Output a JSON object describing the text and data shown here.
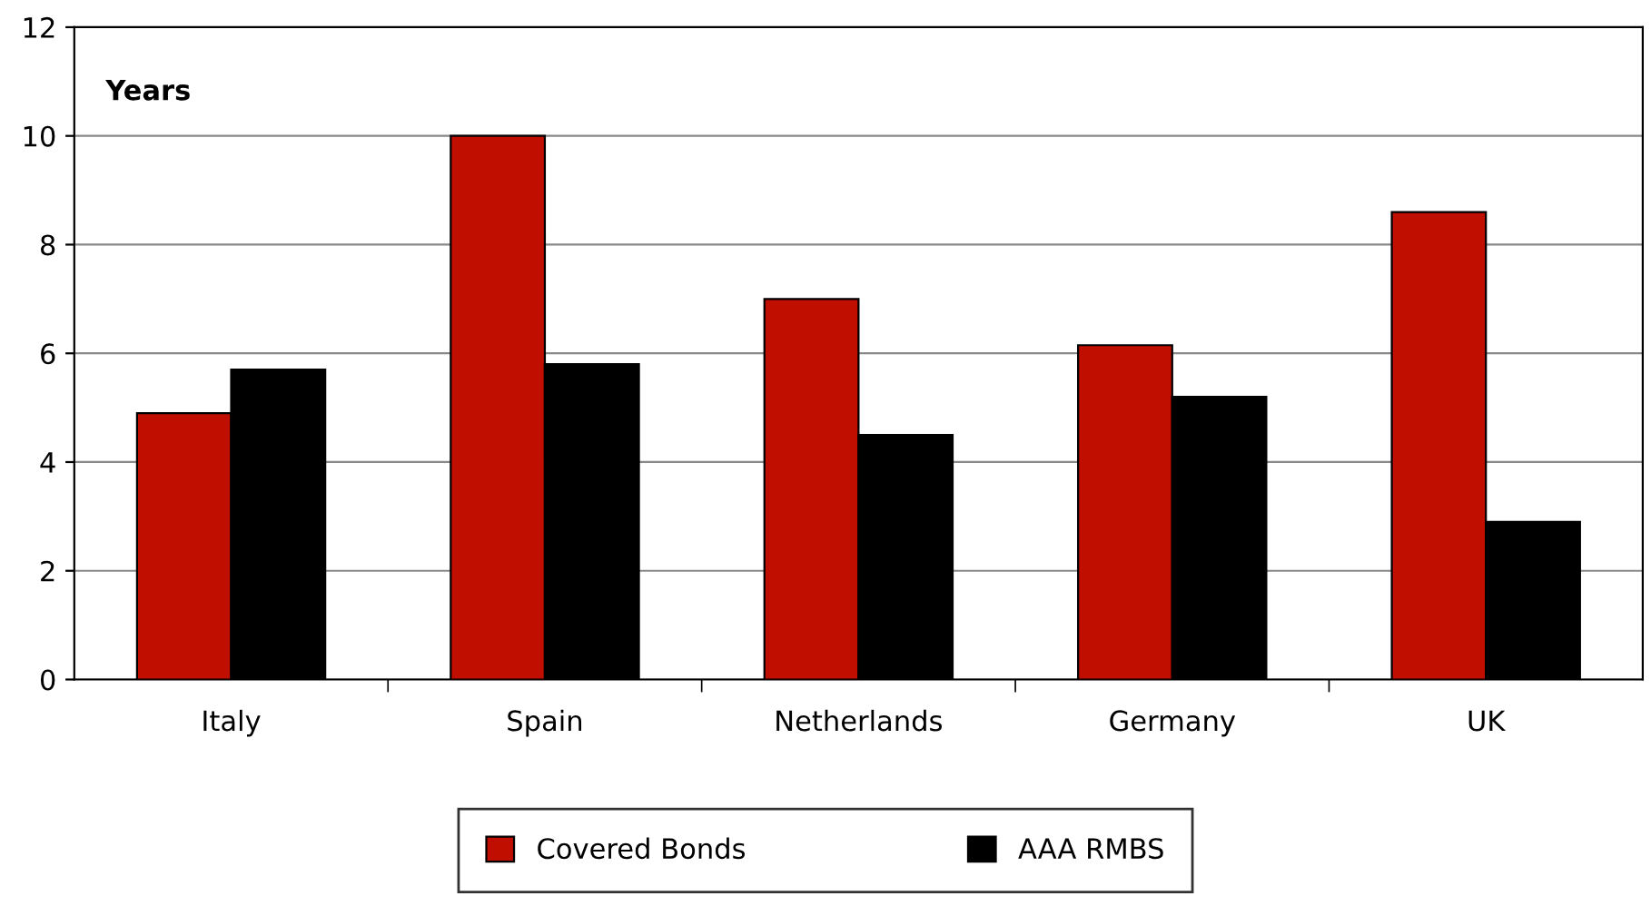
{
  "chart_data": {
    "type": "bar",
    "ylabel": "Years",
    "categories": [
      "Italy",
      "Spain",
      "Netherlands",
      "Germany",
      "UK"
    ],
    "series": [
      {
        "name": "Covered Bonds",
        "color": "#c00f00",
        "values": [
          4.9,
          10.0,
          7.0,
          6.15,
          8.6
        ]
      },
      {
        "name": "AAA RMBS",
        "color": "#000000",
        "values": [
          5.7,
          5.8,
          4.5,
          5.2,
          2.9
        ]
      }
    ],
    "ylim": [
      0,
      12
    ],
    "yticks": [
      0,
      2,
      4,
      6,
      8,
      10,
      12
    ],
    "grid": "y",
    "legend": "bottom"
  }
}
